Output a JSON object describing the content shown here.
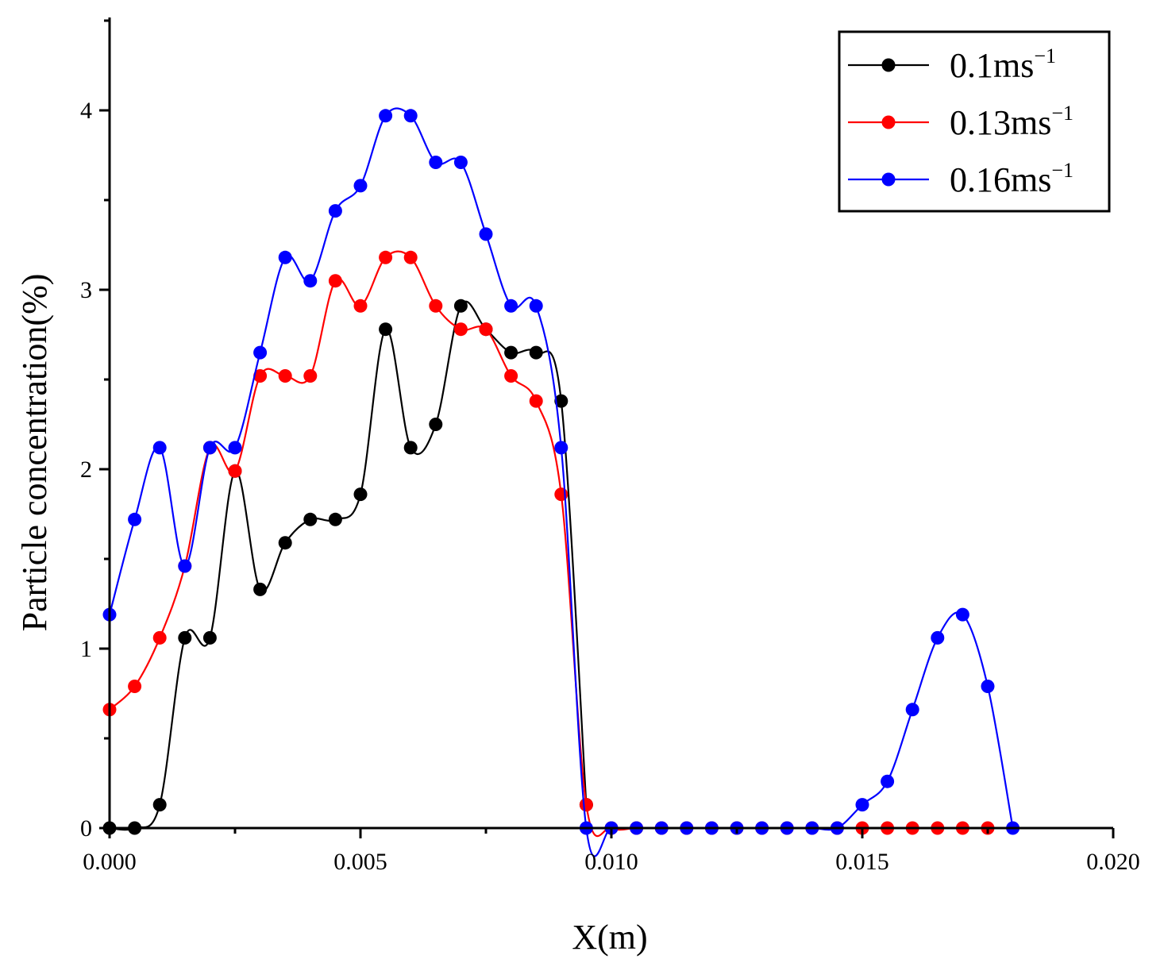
{
  "chart_data": {
    "type": "line",
    "title": "",
    "xlabel": "X(m)",
    "ylabel": "Particle concentration(%)",
    "xlim": [
      0,
      0.02
    ],
    "ylim": [
      0,
      4.5
    ],
    "xticks": [
      "0.000",
      "0.005",
      "0.010",
      "0.015",
      "0.020"
    ],
    "xtick_values": [
      0,
      0.005,
      0.01,
      0.015,
      0.02
    ],
    "yticks": [
      "0",
      "1",
      "2",
      "3",
      "4"
    ],
    "ytick_values": [
      0,
      1,
      2,
      3,
      4
    ],
    "grid": false,
    "legend_position": "top-right",
    "x": [
      0.0,
      0.0005,
      0.001,
      0.0015,
      0.002,
      0.0025,
      0.003,
      0.0035,
      0.004,
      0.0045,
      0.005,
      0.0055,
      0.006,
      0.0065,
      0.007,
      0.0075,
      0.008,
      0.0085,
      0.009,
      0.0095,
      0.01,
      0.0105,
      0.011,
      0.0115,
      0.012,
      0.0125,
      0.013,
      0.0135,
      0.014,
      0.0145,
      0.015,
      0.0155,
      0.016,
      0.0165,
      0.017,
      0.0175,
      0.018
    ],
    "series": [
      {
        "name": "0.1ms",
        "legend_base": "0.1ms",
        "legend_sup": "−1",
        "color": "#000000",
        "x": [
          0.0,
          0.0005,
          0.001,
          0.0015,
          0.002,
          0.0025,
          0.003,
          0.0035,
          0.004,
          0.0045,
          0.005,
          0.0055,
          0.006,
          0.0065,
          0.007,
          0.0075,
          0.008,
          0.0085,
          0.009,
          0.0095
        ],
        "values": [
          0.0,
          0.0,
          0.13,
          1.06,
          1.06,
          1.99,
          1.33,
          1.59,
          1.72,
          1.72,
          1.86,
          2.78,
          2.12,
          2.25,
          2.91,
          2.78,
          2.65,
          2.65,
          2.38,
          0.13
        ]
      },
      {
        "name": "0.13ms",
        "legend_base": "0.13ms",
        "legend_sup": "−1",
        "color": "#ff0000",
        "x": [
          0.0,
          0.0005,
          0.001,
          0.0015,
          0.002,
          0.0025,
          0.003,
          0.0035,
          0.004,
          0.0045,
          0.005,
          0.0055,
          0.006,
          0.0065,
          0.007,
          0.0075,
          0.008,
          0.0085,
          0.009,
          0.0095,
          0.01,
          0.0105,
          0.011,
          0.0115,
          0.012,
          0.0125,
          0.013,
          0.0135,
          0.014,
          0.0145,
          0.015,
          0.0155,
          0.016,
          0.0165,
          0.017,
          0.0175
        ],
        "values": [
          0.66,
          0.79,
          1.06,
          1.46,
          2.12,
          1.99,
          2.52,
          2.52,
          2.52,
          3.05,
          2.91,
          3.18,
          3.18,
          2.91,
          2.78,
          2.78,
          2.52,
          2.38,
          1.86,
          0.13,
          0.0,
          0.0,
          0.0,
          0.0,
          0.0,
          0.0,
          0.0,
          0.0,
          0.0,
          0.0,
          0.0,
          0.0,
          0.0,
          0.0,
          0.0,
          0.0
        ]
      },
      {
        "name": "0.16ms",
        "legend_base": "0.16ms",
        "legend_sup": "−1",
        "color": "#0000ff",
        "x": [
          0.0,
          0.0005,
          0.001,
          0.0015,
          0.002,
          0.0025,
          0.003,
          0.0035,
          0.004,
          0.0045,
          0.005,
          0.0055,
          0.006,
          0.0065,
          0.007,
          0.0075,
          0.008,
          0.0085,
          0.009,
          0.0095,
          0.01,
          0.0105,
          0.011,
          0.0115,
          0.012,
          0.0125,
          0.013,
          0.0135,
          0.014,
          0.0145,
          0.015,
          0.0155,
          0.016,
          0.0165,
          0.017,
          0.0175,
          0.018
        ],
        "values": [
          1.19,
          1.72,
          2.12,
          1.46,
          2.12,
          2.12,
          2.65,
          3.18,
          3.05,
          3.44,
          3.58,
          3.97,
          3.97,
          3.71,
          3.71,
          3.31,
          2.91,
          2.91,
          2.12,
          0.0,
          0.0,
          0.0,
          0.0,
          0.0,
          0.0,
          0.0,
          0.0,
          0.0,
          0.0,
          0.0,
          0.13,
          0.26,
          0.66,
          1.06,
          1.19,
          0.79,
          0.0
        ]
      }
    ]
  }
}
